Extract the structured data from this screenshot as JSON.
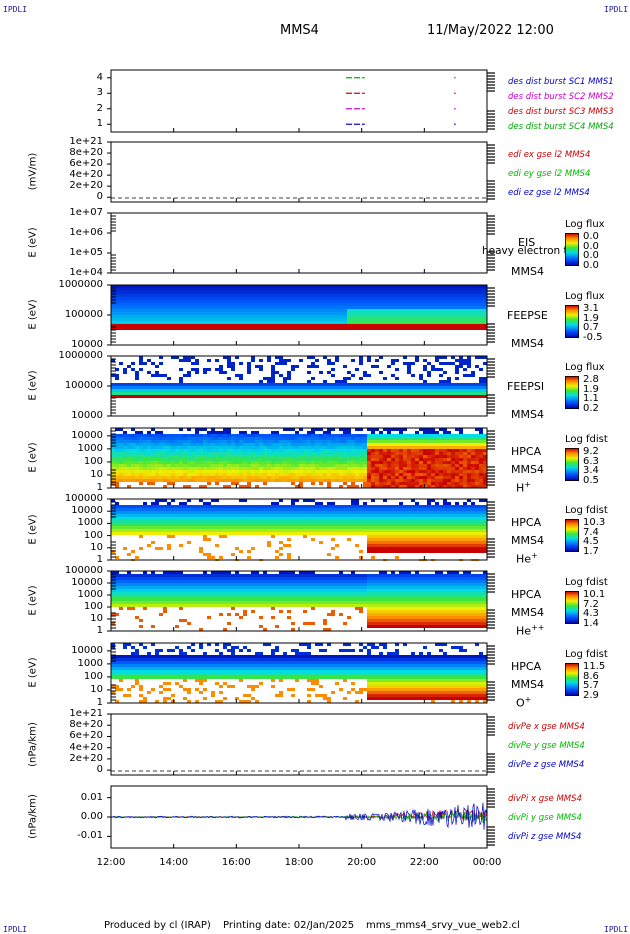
{
  "header": {
    "corner_left": "IPDLI",
    "corner_right": "IPDLI",
    "title": "MMS4",
    "datetime": "11/May/2022 12:00"
  },
  "footer": {
    "produced": "Produced by cl (IRAP)",
    "printing": "Printing date: 02/Jan/2025",
    "file": "mms_mms4_srvy_vue_web2.cl",
    "corner_left": "IPDLI",
    "corner_right": "IPDLI"
  },
  "colors": {
    "mms1": "#0000cc",
    "mms2": "#cc00cc",
    "mms3": "#cc0000",
    "mms4": "#00aa00",
    "x_comp": "#cc0000",
    "y_comp": "#00bb00",
    "z_comp": "#0000cc"
  },
  "chart_data": [
    {
      "type": "line",
      "id": "burst",
      "ylabel": "",
      "yticks": [
        "4",
        "3",
        "2",
        "1"
      ],
      "ylim": [
        0.5,
        4.5
      ],
      "legend": [
        "des dist burst SC1 MMS1",
        "des dist burst SC2 MMS2",
        "des dist burst SC3 MMS3",
        "des dist burst SC4 MMS4"
      ],
      "segments_hours": [
        [
          19.5,
          20.1
        ],
        [
          22.95,
          23.0
        ]
      ]
    },
    {
      "type": "line",
      "id": "edi",
      "ylabel": "(mV/m)",
      "yticks": [
        "1e+21",
        "8e+20",
        "6e+20",
        "4e+20",
        "2e+20",
        "0"
      ],
      "ylim": [
        0,
        1e+21
      ],
      "legend": [
        "edi ex gse l2 MMS4",
        "edi ey gse l2 MMS4",
        "edi ez gse l2 MMS4"
      ]
    },
    {
      "type": "heatmap",
      "id": "eis",
      "ylabel": "E (eV)",
      "yticks": [
        "1e+07",
        "1e+06",
        "1e+05",
        "1e+04"
      ],
      "ylim": [
        10000,
        10000000
      ],
      "scale": "log",
      "labels": [
        "EIS",
        "MMS4"
      ],
      "overlay_text": "heavy electron to",
      "colorbar": {
        "title": "Log flux",
        "values": [
          "0.0",
          "0.0",
          "0.0",
          "0.0"
        ]
      }
    },
    {
      "type": "heatmap",
      "id": "feepse",
      "ylabel": "E (eV)",
      "yticks": [
        "1000000",
        "100000",
        "10000"
      ],
      "ylim": [
        10000,
        1000000
      ],
      "scale": "log",
      "labels": [
        "FEEPSE",
        "MMS4"
      ],
      "colorbar": {
        "title": "Log flux",
        "values": [
          "3.1",
          "1.9",
          "0.7",
          "-0.5"
        ]
      }
    },
    {
      "type": "heatmap",
      "id": "feepsi",
      "ylabel": "E (eV)",
      "yticks": [
        "1000000",
        "100000",
        "10000"
      ],
      "ylim": [
        10000,
        1000000
      ],
      "scale": "log",
      "labels": [
        "FEEPSI",
        "MMS4"
      ],
      "colorbar": {
        "title": "Log flux",
        "values": [
          "2.8",
          "1.9",
          "1.1",
          "0.2"
        ]
      }
    },
    {
      "type": "heatmap",
      "id": "hpca_h",
      "ylabel": "E (eV)",
      "yticks": [
        "10000",
        "1000",
        "100",
        "10",
        "1"
      ],
      "ylim": [
        1,
        40000
      ],
      "scale": "log",
      "labels": [
        "HPCA",
        "MMS4",
        "H"
      ],
      "species_sup": "+",
      "colorbar": {
        "title": "Log fdist",
        "values": [
          "9.2",
          "6.3",
          "3.4",
          "0.5"
        ]
      }
    },
    {
      "type": "heatmap",
      "id": "hpca_he",
      "ylabel": "E (eV)",
      "yticks": [
        "100000",
        "10000",
        "1000",
        "100",
        "10",
        "1"
      ],
      "ylim": [
        1,
        100000
      ],
      "scale": "log",
      "labels": [
        "HPCA",
        "MMS4",
        "He"
      ],
      "species_sup": "+",
      "colorbar": {
        "title": "Log fdist",
        "values": [
          "10.3",
          "7.4",
          "4.5",
          "1.7"
        ]
      }
    },
    {
      "type": "heatmap",
      "id": "hpca_hepp",
      "ylabel": "E (eV)",
      "yticks": [
        "100000",
        "10000",
        "1000",
        "100",
        "10",
        "1"
      ],
      "ylim": [
        1,
        100000
      ],
      "scale": "log",
      "labels": [
        "HPCA",
        "MMS4",
        "He"
      ],
      "species_sup": "++",
      "colorbar": {
        "title": "Log fdist",
        "values": [
          "10.1",
          "7.2",
          "4.3",
          "1.4"
        ]
      }
    },
    {
      "type": "heatmap",
      "id": "hpca_o",
      "ylabel": "E (eV)",
      "yticks": [
        "10000",
        "1000",
        "100",
        "10",
        "1"
      ],
      "ylim": [
        1,
        40000
      ],
      "scale": "log",
      "labels": [
        "HPCA",
        "MMS4",
        "O"
      ],
      "species_sup": "+",
      "colorbar": {
        "title": "Log fdist",
        "values": [
          "11.5",
          "8.6",
          "5.7",
          "2.9"
        ]
      }
    },
    {
      "type": "line",
      "id": "divpe",
      "ylabel": "(nPa/km)",
      "yticks": [
        "1e+21",
        "8e+20",
        "6e+20",
        "4e+20",
        "2e+20",
        "0"
      ],
      "ylim": [
        0,
        1e+21
      ],
      "legend": [
        "divPe x gse MMS4",
        "divPe y gse MMS4",
        "divPe z gse MMS4"
      ]
    },
    {
      "type": "line",
      "id": "divpi",
      "ylabel": "(nPa/km)",
      "yticks": [
        "0.01",
        "0.00",
        "-0.01"
      ],
      "ylim": [
        -0.016,
        0.016
      ],
      "legend": [
        "divPi x gse MMS4",
        "divPi y gse MMS4",
        "divPi z gse MMS4"
      ]
    }
  ],
  "xaxis": {
    "ticks": [
      "12:00",
      "14:00",
      "16:00",
      "18:00",
      "20:00",
      "22:00",
      "00:00"
    ],
    "range_hours": [
      12,
      24
    ]
  }
}
